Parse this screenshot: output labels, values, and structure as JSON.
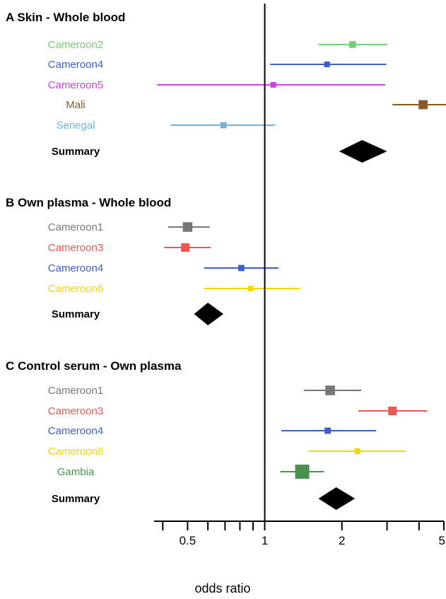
{
  "chart_data": {
    "type": "forest",
    "scale": "log",
    "xlim": [
      0.37,
      5
    ],
    "reference_line": 1,
    "xlabel": "odds ratio",
    "xticks": [
      {
        "value": 0.4,
        "label": ""
      },
      {
        "value": 0.5,
        "label": "0.5"
      },
      {
        "value": 0.6,
        "label": ""
      },
      {
        "value": 0.7,
        "label": ""
      },
      {
        "value": 0.8,
        "label": ""
      },
      {
        "value": 0.9,
        "label": ""
      },
      {
        "value": 1,
        "label": "1"
      },
      {
        "value": 2,
        "label": "2"
      },
      {
        "value": 3,
        "label": ""
      },
      {
        "value": 4,
        "label": ""
      },
      {
        "value": 5,
        "label": "5"
      }
    ],
    "panels": [
      {
        "title": "A  Skin - Whole blood",
        "studies": [
          {
            "name": "Cameroon2",
            "color": "#77cc77",
            "or": 2.2,
            "lo": 1.62,
            "hi": 3.0,
            "weight": 0.35
          },
          {
            "name": "Cameroon4",
            "color": "#3a5fcd",
            "or": 1.75,
            "lo": 1.05,
            "hi": 2.98,
            "weight": 0.25
          },
          {
            "name": "Cameroon5",
            "color": "#cc44dd",
            "or": 1.08,
            "lo": 0.38,
            "hi": 2.95,
            "weight": 0.25
          },
          {
            "name": "Mali",
            "color": "#8b5a2b",
            "or": 4.15,
            "lo": 3.15,
            "hi": 5.1,
            "weight": 0.55
          },
          {
            "name": "Senegal",
            "color": "#6cb4e8",
            "or": 0.69,
            "lo": 0.43,
            "hi": 1.1,
            "weight": 0.3
          }
        ],
        "summary": {
          "label": "Summary",
          "or": 2.4,
          "lo": 1.95,
          "hi": 3.0
        }
      },
      {
        "title": "B  Own plasma - Whole blood",
        "studies": [
          {
            "name": "Cameroon1",
            "color": "#777777",
            "or": 0.5,
            "lo": 0.42,
            "hi": 0.61,
            "weight": 0.6
          },
          {
            "name": "Cameroon3",
            "color": "#ee5555",
            "or": 0.49,
            "lo": 0.405,
            "hi": 0.615,
            "weight": 0.5
          },
          {
            "name": "Cameroon4",
            "color": "#3a5fcd",
            "or": 0.81,
            "lo": 0.58,
            "hi": 1.13,
            "weight": 0.3
          },
          {
            "name": "Cameroon6",
            "color": "#f5d800",
            "or": 0.88,
            "lo": 0.58,
            "hi": 1.38,
            "weight": 0.25
          }
        ],
        "summary": {
          "label": "Summary",
          "or": 0.6,
          "lo": 0.53,
          "hi": 0.69
        }
      },
      {
        "title": "C  Control serum - Own plasma",
        "studies": [
          {
            "name": "Cameroon1",
            "color": "#777777",
            "or": 1.8,
            "lo": 1.42,
            "hi": 2.38,
            "weight": 0.6
          },
          {
            "name": "Cameroon3",
            "color": "#ee5555",
            "or": 3.15,
            "lo": 2.32,
            "hi": 4.3,
            "weight": 0.5
          },
          {
            "name": "Cameroon4",
            "color": "#3a5fcd",
            "or": 1.76,
            "lo": 1.16,
            "hi": 2.72,
            "weight": 0.3
          },
          {
            "name": "Cameroon6",
            "color": "#f5d800",
            "or": 2.3,
            "lo": 1.48,
            "hi": 3.55,
            "weight": 0.25
          },
          {
            "name": "Gambia",
            "color": "#4a9150",
            "or": 1.4,
            "lo": 1.15,
            "hi": 1.7,
            "weight": 1.0
          }
        ],
        "summary": {
          "label": "Summary",
          "or": 1.9,
          "lo": 1.62,
          "hi": 2.25
        }
      }
    ]
  }
}
